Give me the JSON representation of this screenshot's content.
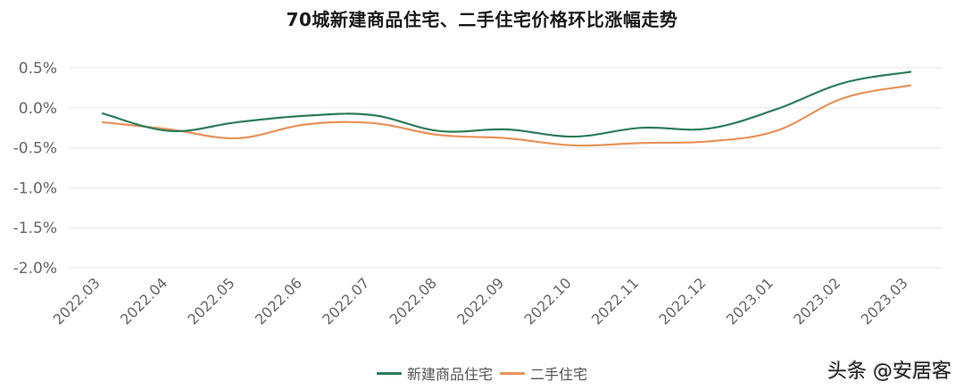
{
  "title": "70城新建商品住宅、二手住宅价格环比涨幅走势",
  "watermark": "头条 @安居客",
  "legend": [
    {
      "name": "新建商品住宅",
      "color": "#2e7d5b"
    },
    {
      "name": "二手住宅",
      "color": "#e8935a"
    }
  ],
  "chart_data": {
    "type": "line",
    "title": "70城新建商品住宅、二手住宅价格环比涨幅走势",
    "xlabel": "",
    "ylabel": "",
    "x": [
      "2022.03",
      "2022.04",
      "2022.05",
      "2022.06",
      "2022.07",
      "2022.08",
      "2022.09",
      "2022.10",
      "2022.11",
      "2022.12",
      "2023.01",
      "2023.02",
      "2023.03"
    ],
    "yticks": [
      "0.5%",
      "0.0%",
      "-0.5%",
      "-1.0%",
      "-1.5%",
      "-2.0%"
    ],
    "ylim": [
      -2.0,
      0.5
    ],
    "grid": true,
    "legend_position": "bottom",
    "series": [
      {
        "name": "新建商品住宅",
        "color": "#2e7d5b",
        "values": [
          -0.07,
          -0.29,
          -0.18,
          -0.1,
          -0.09,
          -0.29,
          -0.27,
          -0.36,
          -0.25,
          -0.26,
          -0.02,
          0.31,
          0.45
        ]
      },
      {
        "name": "二手住宅",
        "color": "#e8935a",
        "values": [
          -0.18,
          -0.27,
          -0.38,
          -0.21,
          -0.19,
          -0.34,
          -0.38,
          -0.47,
          -0.44,
          -0.42,
          -0.29,
          0.12,
          0.28
        ]
      }
    ]
  }
}
